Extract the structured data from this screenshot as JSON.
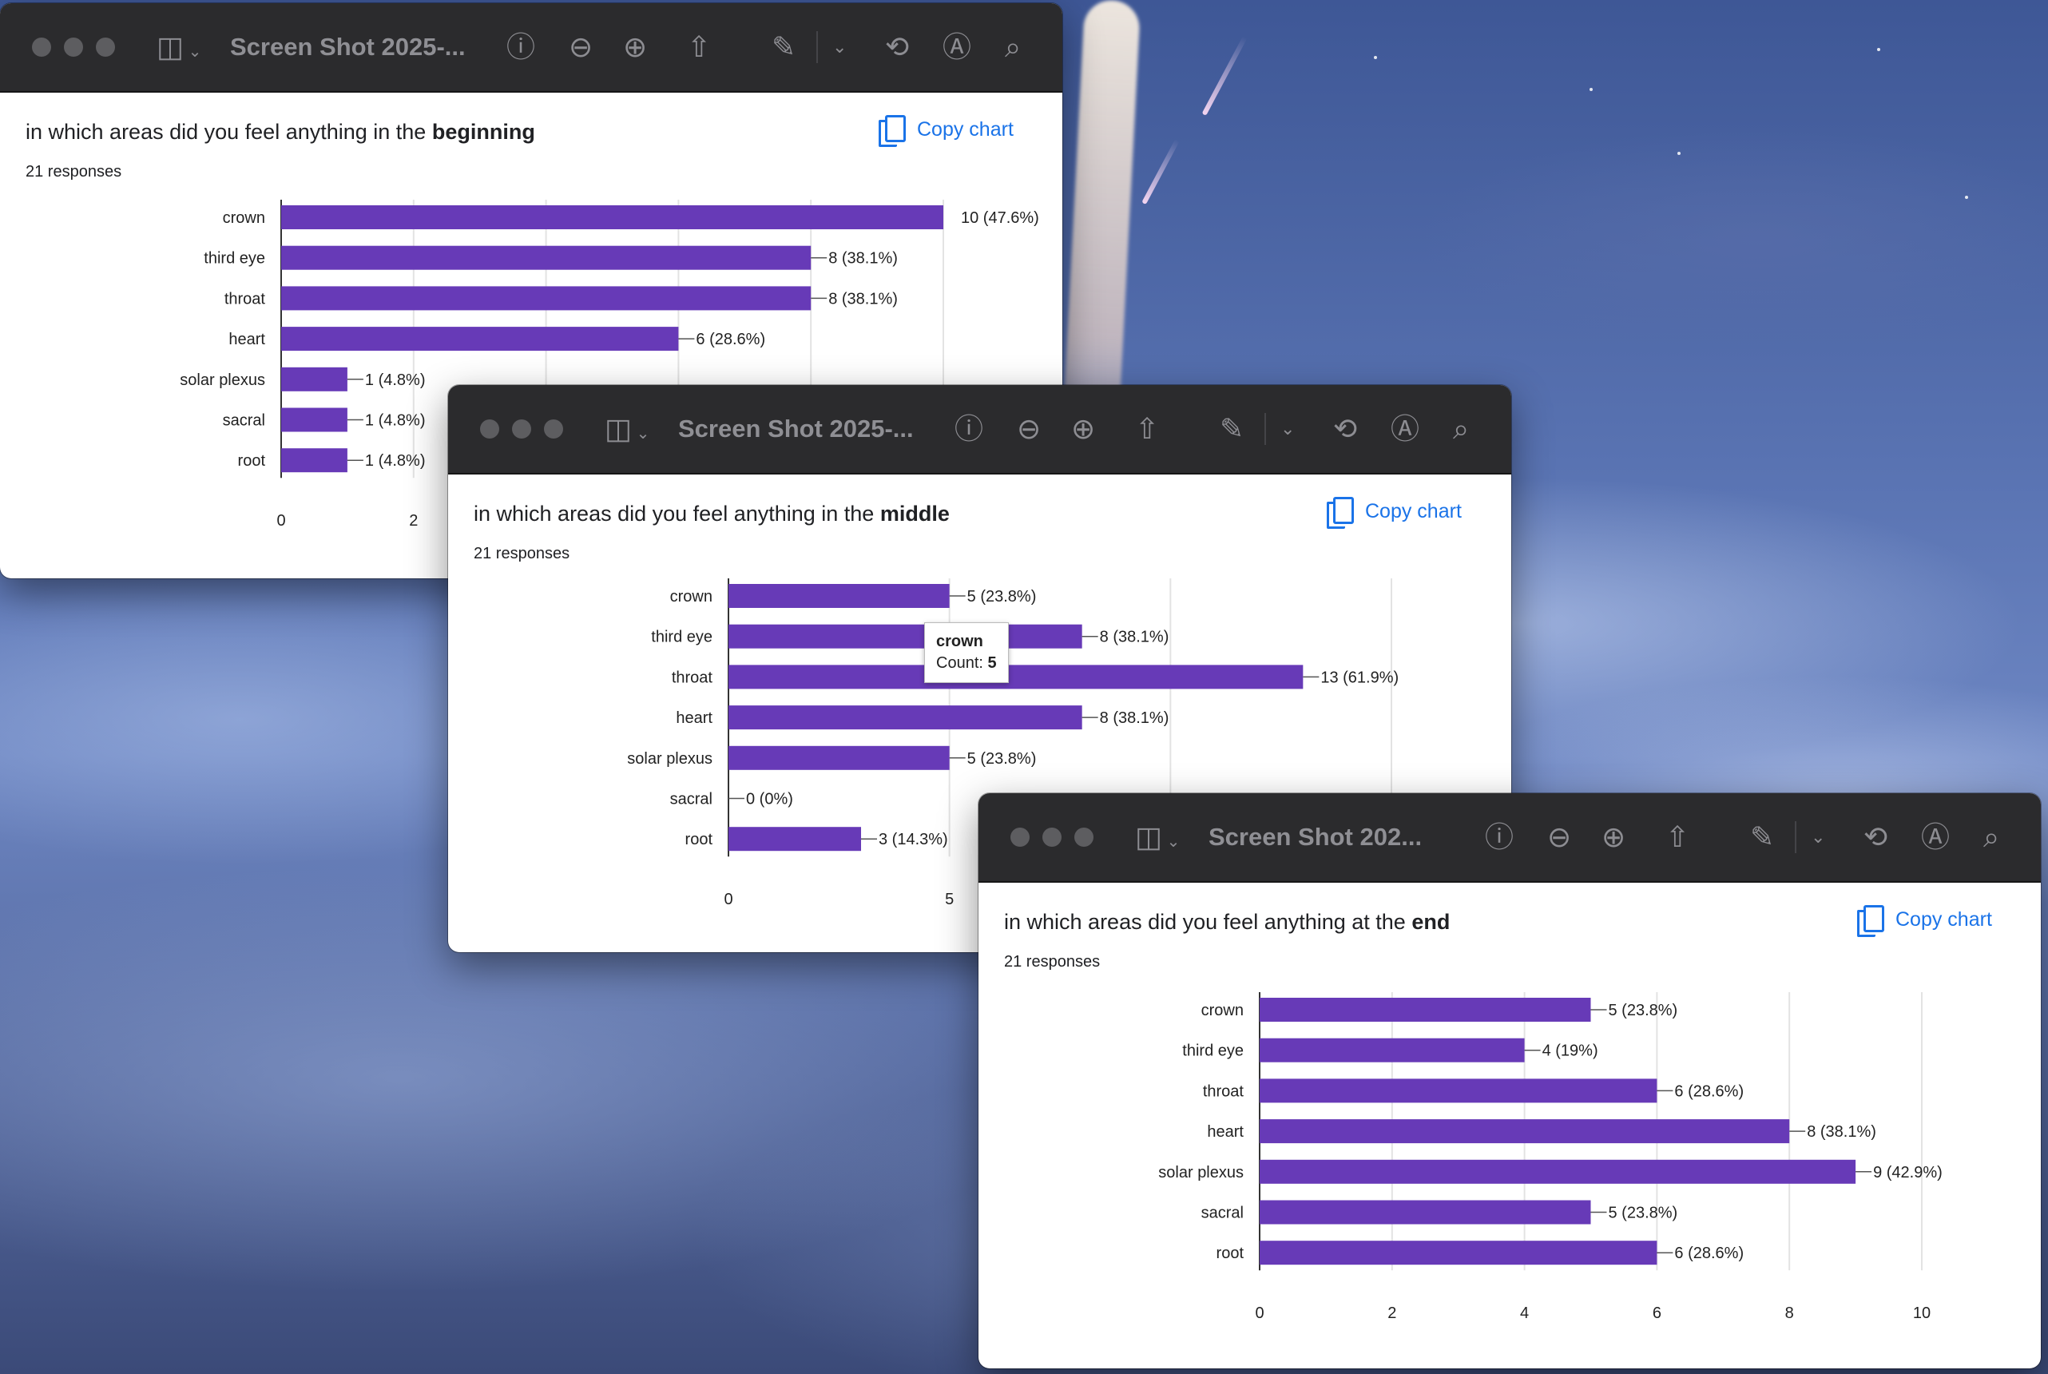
{
  "windows": [
    {
      "title": "Screen Shot 2025-...",
      "question_prefix": "in which areas did you feel anything in the",
      "question_emphasis": "beginning",
      "responses": "21 responses",
      "copy_label": "Copy chart"
    },
    {
      "title": "Screen Shot 2025-...",
      "question_prefix": "in which areas did you feel anything in the",
      "question_emphasis": "middle",
      "responses": "21 responses",
      "copy_label": "Copy chart",
      "tooltip": {
        "label": "crown",
        "count_label": "Count:",
        "count_value": "5"
      }
    },
    {
      "title": "Screen Shot 202...",
      "question_prefix": "in which areas did you feel anything at the",
      "question_emphasis": "end",
      "responses": "21 responses",
      "copy_label": "Copy chart"
    }
  ],
  "colors": {
    "bar": "#673ab7",
    "link": "#1a73e8",
    "titlebar": "#2b2b2d"
  },
  "chart_data": [
    {
      "type": "bar",
      "orientation": "horizontal",
      "categories": [
        "crown",
        "third eye",
        "throat",
        "heart",
        "solar plexus",
        "sacral",
        "root"
      ],
      "values": [
        10,
        8,
        8,
        6,
        1,
        1,
        1
      ],
      "data_labels": [
        "10 (47.6%)",
        "8 (38.1%)",
        "8 (38.1%)",
        "6 (28.6%)",
        "1 (4.8%)",
        "1 (4.8%)",
        "1 (4.8%)"
      ],
      "ticks": [
        "0",
        "2"
      ],
      "xlim": [
        0,
        10
      ]
    },
    {
      "type": "bar",
      "orientation": "horizontal",
      "categories": [
        "crown",
        "third eye",
        "throat",
        "heart",
        "solar plexus",
        "sacral",
        "root"
      ],
      "values": [
        5,
        8,
        13,
        8,
        5,
        0,
        3
      ],
      "data_labels": [
        "5 (23.8%)",
        "8 (38.1%)",
        "13 (61.9%)",
        "8 (38.1%)",
        "5 (23.8%)",
        "0 (0%)",
        "3 (14.3%)"
      ],
      "ticks": [
        "0",
        "5"
      ],
      "xlim": [
        0,
        15
      ]
    },
    {
      "type": "bar",
      "orientation": "horizontal",
      "categories": [
        "crown",
        "third eye",
        "throat",
        "heart",
        "solar plexus",
        "sacral",
        "root"
      ],
      "values": [
        5,
        4,
        6,
        8,
        9,
        5,
        6
      ],
      "data_labels": [
        "5 (23.8%)",
        "4 (19%)",
        "6 (28.6%)",
        "8 (38.1%)",
        "9 (42.9%)",
        "5 (23.8%)",
        "6 (28.6%)"
      ],
      "ticks": [
        "0",
        "2",
        "4",
        "6",
        "8",
        "10"
      ],
      "xlim": [
        0,
        10
      ]
    }
  ]
}
